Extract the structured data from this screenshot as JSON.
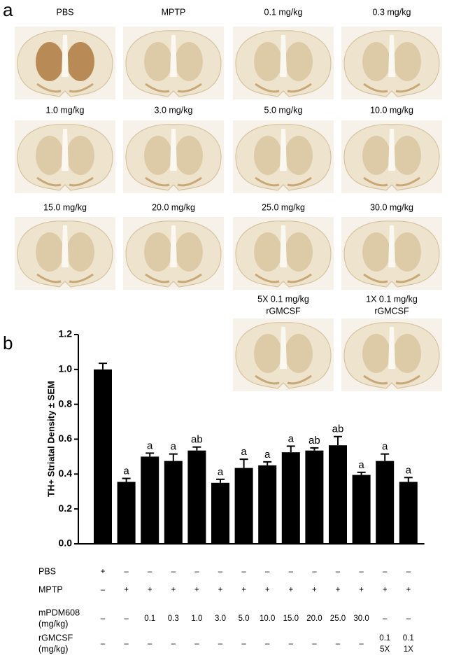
{
  "panel_a": {
    "label": "a",
    "images": [
      [
        "PBS"
      ],
      [
        "MPTP"
      ],
      [
        "0.1 mg/kg"
      ],
      [
        "0.3 mg/kg"
      ],
      [
        "1.0 mg/kg"
      ],
      [
        "3.0 mg/kg"
      ],
      [
        "5.0 mg/kg"
      ],
      [
        "10.0 mg/kg"
      ],
      [
        "15.0 mg/kg"
      ],
      [
        "20.0 mg/kg"
      ],
      [
        "25.0 mg/kg"
      ],
      [
        "30.0 mg/kg"
      ],
      [
        "5X 0.1 mg/kg",
        "rGMCSF"
      ],
      [
        "1X 0.1 mg/kg",
        "rGMCSF"
      ]
    ]
  },
  "panel_b": {
    "label": "b"
  },
  "chart_data": {
    "type": "bar",
    "y_label": "TH+ Striatal Density ± SEM",
    "color": "#000000",
    "values": [
      1.0,
      0.355,
      0.5,
      0.475,
      0.535,
      0.35,
      0.435,
      0.45,
      0.525,
      0.535,
      0.565,
      0.395,
      0.475,
      0.355
    ],
    "errors": [
      0.035,
      0.02,
      0.02,
      0.04,
      0.02,
      0.02,
      0.05,
      0.02,
      0.035,
      0.015,
      0.05,
      0.015,
      0.04,
      0.025
    ],
    "annotations": [
      null,
      "a",
      "a",
      "a",
      "ab",
      "a",
      "a",
      "a",
      "a",
      "ab",
      "ab",
      "a",
      "a",
      "a"
    ],
    "ylim": [
      0,
      1.2
    ],
    "yticks": [
      {
        "value": 0,
        "label": "0.0"
      },
      0.2,
      0.4,
      0.6,
      0.8,
      {
        "value": 1,
        "label": "1.0"
      },
      1.2
    ]
  },
  "treatment_table": {
    "rows": [
      {
        "label": [
          "PBS"
        ],
        "cells": [
          [
            "+"
          ],
          [
            "–"
          ],
          [
            "–"
          ],
          [
            "–"
          ],
          [
            "–"
          ],
          [
            "–"
          ],
          [
            "–"
          ],
          [
            "–"
          ],
          [
            "–"
          ],
          [
            "–"
          ],
          [
            "–"
          ],
          [
            "–"
          ],
          [
            "–"
          ],
          [
            "–"
          ]
        ]
      },
      {
        "label": [
          "MPTP"
        ],
        "cells": [
          [
            "–"
          ],
          [
            "+"
          ],
          [
            "+"
          ],
          [
            "+"
          ],
          [
            "+"
          ],
          [
            "+"
          ],
          [
            "+"
          ],
          [
            "+"
          ],
          [
            "+"
          ],
          [
            "+"
          ],
          [
            "+"
          ],
          [
            "+"
          ],
          [
            "+"
          ],
          [
            "+"
          ]
        ]
      },
      {
        "label": [
          "mPDM608",
          "(mg/kg)"
        ],
        "cells": [
          [
            "–"
          ],
          [
            "–"
          ],
          [
            "0.1"
          ],
          [
            "0.3"
          ],
          [
            "1.0"
          ],
          [
            "3.0"
          ],
          [
            "5.0"
          ],
          [
            "10.0"
          ],
          [
            "15.0"
          ],
          [
            "20.0"
          ],
          [
            "25.0"
          ],
          [
            "30.0"
          ],
          [
            "–"
          ],
          [
            "–"
          ]
        ]
      },
      {
        "label": [
          "rGMCSF",
          "(mg/kg)"
        ],
        "cells": [
          [
            "–"
          ],
          [
            "–"
          ],
          [
            "–"
          ],
          [
            "–"
          ],
          [
            "–"
          ],
          [
            "–"
          ],
          [
            "–"
          ],
          [
            "–"
          ],
          [
            "–"
          ],
          [
            "–"
          ],
          [
            "–"
          ],
          [
            "–"
          ],
          [
            "0.1",
            "5X"
          ],
          [
            "0.1",
            "1X"
          ]
        ]
      }
    ]
  }
}
